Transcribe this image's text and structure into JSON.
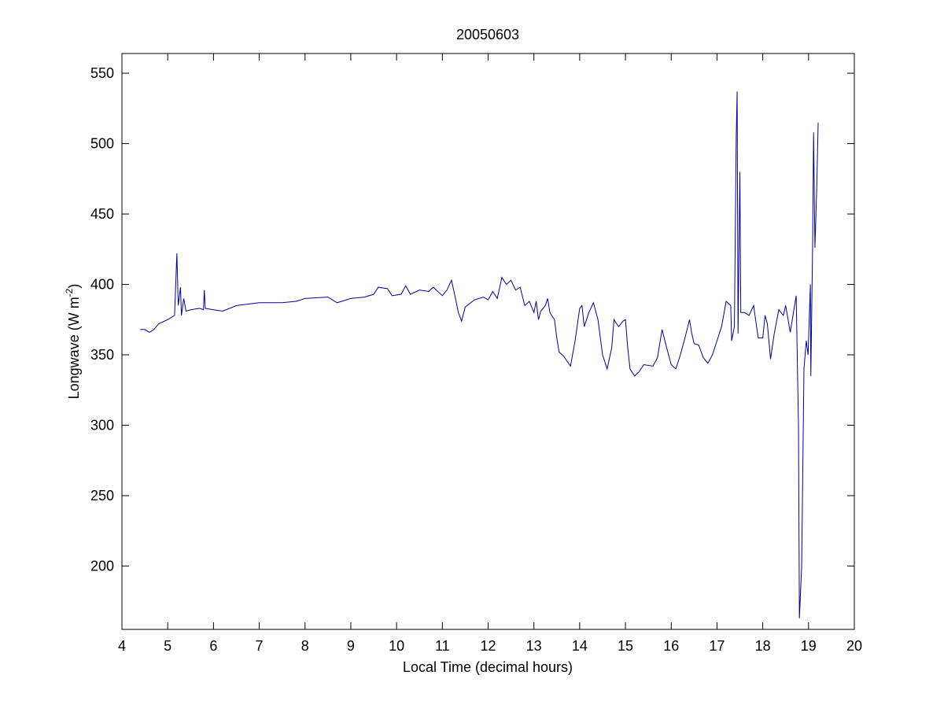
{
  "chart_data": {
    "type": "line",
    "title": "20050603",
    "xlabel": "Local Time (decimal hours)",
    "ylabel": {
      "text": "Longwave (W m",
      "superscript": "-2",
      "suffix": ")"
    },
    "xlim": [
      4,
      20
    ],
    "xticks": [
      4,
      5,
      6,
      7,
      8,
      9,
      10,
      11,
      12,
      13,
      14,
      15,
      16,
      17,
      18,
      19,
      20
    ],
    "ylim": [
      155,
      564
    ],
    "yticks": [
      200,
      250,
      300,
      350,
      400,
      450,
      500,
      550
    ],
    "grid": false,
    "series": [
      {
        "name": "Longwave",
        "color": "#0000a0",
        "x": [
          4.4,
          4.5,
          4.6,
          4.7,
          4.8,
          5.0,
          5.15,
          5.2,
          5.23,
          5.28,
          5.3,
          5.35,
          5.4,
          5.5,
          5.7,
          5.78,
          5.8,
          5.82,
          6.0,
          6.2,
          6.5,
          7.0,
          7.5,
          7.8,
          8.0,
          8.5,
          8.7,
          9.0,
          9.3,
          9.5,
          9.6,
          9.8,
          9.9,
          10.1,
          10.2,
          10.3,
          10.5,
          10.7,
          10.8,
          11.0,
          11.1,
          11.2,
          11.3,
          11.35,
          11.42,
          11.5,
          11.7,
          11.9,
          12.0,
          12.1,
          12.2,
          12.3,
          12.4,
          12.5,
          12.6,
          12.7,
          12.8,
          12.9,
          13.0,
          13.05,
          13.1,
          13.15,
          13.25,
          13.3,
          13.35,
          13.45,
          13.5,
          13.55,
          13.65,
          13.8,
          13.9,
          14.0,
          14.05,
          14.1,
          14.2,
          14.3,
          14.4,
          14.5,
          14.6,
          14.7,
          14.75,
          14.85,
          14.95,
          15.0,
          15.05,
          15.1,
          15.2,
          15.3,
          15.4,
          15.6,
          15.7,
          15.8,
          15.9,
          16.0,
          16.1,
          16.2,
          16.3,
          16.4,
          16.45,
          16.5,
          16.6,
          16.7,
          16.8,
          16.9,
          17.0,
          17.1,
          17.2,
          17.3,
          17.32,
          17.38,
          17.42,
          17.44,
          17.46,
          17.5,
          17.52,
          17.6,
          17.7,
          17.8,
          17.9,
          18.0,
          18.05,
          18.1,
          18.17,
          18.25,
          18.35,
          18.45,
          18.5,
          18.6,
          18.73,
          18.78,
          18.8,
          18.85,
          18.9,
          18.95,
          18.99,
          19.04,
          19.05,
          19.09,
          19.11,
          19.14,
          19.18,
          19.21
        ],
        "values": [
          368,
          368,
          366,
          368,
          372,
          375,
          378,
          422,
          385,
          398,
          378,
          390,
          381,
          382,
          383,
          382,
          396,
          383,
          382,
          381,
          385,
          387,
          387,
          388,
          390,
          391,
          387,
          390,
          391,
          393,
          398,
          397,
          392,
          393,
          399,
          393,
          396,
          395,
          398,
          392,
          396,
          403,
          388,
          380,
          374,
          384,
          389,
          391,
          389,
          395,
          390,
          405,
          400,
          403,
          396,
          398,
          385,
          388,
          380,
          388,
          375,
          381,
          385,
          390,
          380,
          375,
          362,
          352,
          349,
          342,
          360,
          383,
          385,
          370,
          380,
          387,
          375,
          350,
          340,
          355,
          375,
          370,
          374,
          375,
          355,
          340,
          335,
          338,
          343,
          342,
          348,
          368,
          355,
          343,
          340,
          350,
          362,
          375,
          365,
          358,
          357,
          348,
          344,
          350,
          360,
          370,
          388,
          385,
          360,
          370,
          505,
          537,
          365,
          480,
          380,
          380,
          378,
          385,
          362,
          362,
          378,
          372,
          347,
          365,
          382,
          378,
          385,
          366,
          392,
          300,
          163,
          200,
          340,
          360,
          350,
          400,
          335,
          430,
          508,
          426,
          470,
          515
        ]
      }
    ]
  }
}
